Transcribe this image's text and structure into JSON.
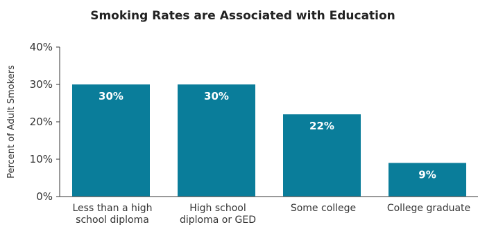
{
  "chart_data": {
    "type": "bar",
    "title": "Smoking Rates are Associated with Education",
    "ylabel": "Percent of Adult Smokers",
    "xlabel": "",
    "ylim": [
      0,
      40
    ],
    "yticks": [
      "0%",
      "10%",
      "20%",
      "30%",
      "40%"
    ],
    "categories": [
      [
        "Less than a high",
        "school diploma"
      ],
      [
        "High school",
        "diploma or GED"
      ],
      [
        "Some college"
      ],
      [
        "College graduate"
      ]
    ],
    "values": [
      30,
      30,
      22,
      9
    ],
    "data_labels": [
      "30%",
      "30%",
      "22%",
      "9%"
    ],
    "bar_color": "#0a7d9a",
    "grid": false,
    "legend": "none"
  }
}
